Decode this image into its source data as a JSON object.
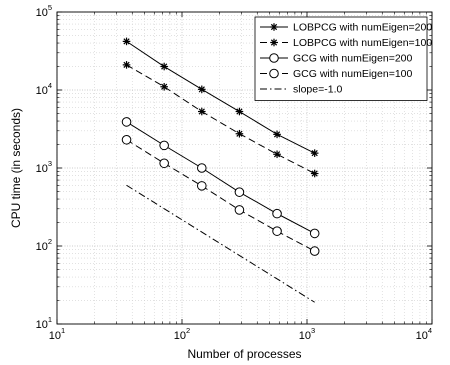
{
  "chart_data": {
    "type": "line",
    "xscale": "log",
    "yscale": "log",
    "xlim": [
      10,
      10000
    ],
    "ylim": [
      10,
      100000
    ],
    "xlabel": "Number of processes",
    "ylabel": "CPU time (in seconds)",
    "grid": true,
    "grid_minor": true,
    "legend_position": "top-right",
    "x_ticks": [
      10,
      100,
      1000,
      10000
    ],
    "y_ticks": [
      10,
      100,
      1000,
      10000,
      100000
    ],
    "series": [
      {
        "name": "LOBPCG with numEigen=200",
        "marker": "asterisk",
        "line_style": "solid",
        "color": "#000000",
        "x": [
          36,
          72,
          144,
          288,
          576,
          1152
        ],
        "y": [
          42000,
          20000,
          10200,
          5300,
          2700,
          1550
        ]
      },
      {
        "name": "LOBPCG with numEigen=100",
        "marker": "asterisk",
        "line_style": "dashed",
        "color": "#000000",
        "x": [
          36,
          72,
          144,
          288,
          576,
          1152
        ],
        "y": [
          21000,
          11000,
          5300,
          2750,
          1500,
          850
        ]
      },
      {
        "name": "GCG with numEigen=200",
        "marker": "circle",
        "line_style": "solid",
        "color": "#000000",
        "x": [
          36,
          72,
          144,
          288,
          576,
          1152
        ],
        "y": [
          3900,
          1950,
          1000,
          490,
          260,
          145
        ]
      },
      {
        "name": "GCG with numEigen=100",
        "marker": "circle",
        "line_style": "dashed",
        "color": "#000000",
        "x": [
          36,
          72,
          144,
          288,
          576,
          1152
        ],
        "y": [
          2300,
          1150,
          590,
          290,
          155,
          86
        ]
      },
      {
        "name": "slope=-1.0",
        "marker": "none",
        "line_style": "dashdot",
        "color": "#000000",
        "x": [
          36,
          1152
        ],
        "y": [
          600,
          19
        ]
      }
    ]
  }
}
